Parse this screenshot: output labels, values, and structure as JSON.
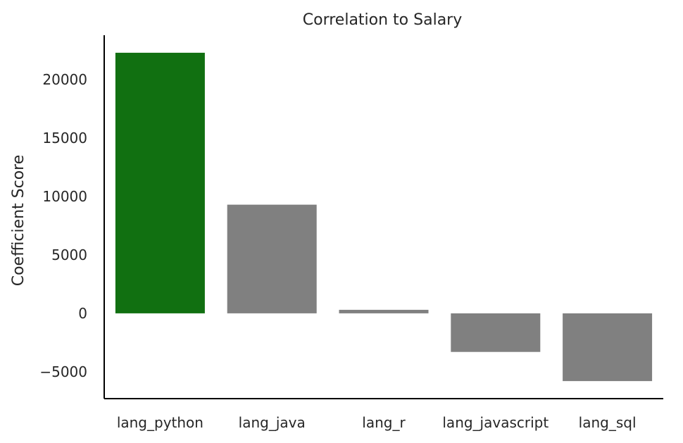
{
  "chart_data": {
    "type": "bar",
    "title": "Correlation to Salary",
    "xlabel": "",
    "ylabel": "Coefficient Score",
    "categories": [
      "lang_python",
      "lang_java",
      "lang_r",
      "lang_javascript",
      "lang_sql"
    ],
    "values": [
      22300,
      9300,
      300,
      -3300,
      -5800
    ],
    "colors": [
      "#117011",
      "#808080",
      "#808080",
      "#808080",
      "#808080"
    ],
    "ylim": [
      -7300,
      23800
    ],
    "yticks": [
      {
        "value": -5000,
        "label": "−5000"
      },
      {
        "value": 0,
        "label": "0"
      },
      {
        "value": 5000,
        "label": "5000"
      },
      {
        "value": 10000,
        "label": "10000"
      },
      {
        "value": 15000,
        "label": "15000"
      },
      {
        "value": 20000,
        "label": "20000"
      }
    ],
    "grid": false,
    "legend": "none"
  }
}
